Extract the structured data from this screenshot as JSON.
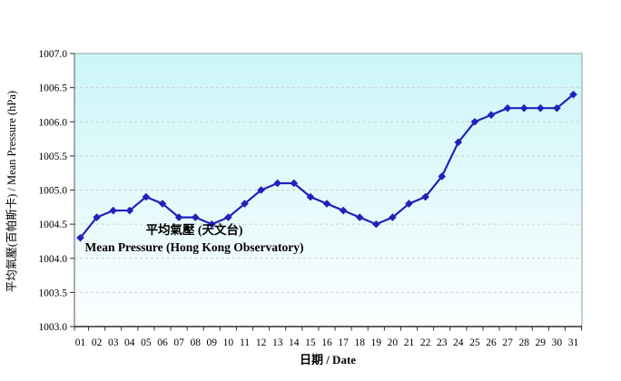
{
  "chart_data": {
    "type": "line",
    "title": "",
    "xlabel": "日期 / Date",
    "ylabel": "平均氣壓(百帕斯卡) / Mean Pressure (hPa)",
    "legend": {
      "line1": "平均氣壓 (天文台)",
      "line2": "Mean Pressure (Hong Kong Observatory)",
      "position": "inside-left-middle"
    },
    "categories": [
      "01",
      "02",
      "03",
      "04",
      "05",
      "06",
      "07",
      "08",
      "09",
      "10",
      "11",
      "12",
      "13",
      "14",
      "15",
      "16",
      "17",
      "18",
      "19",
      "20",
      "21",
      "22",
      "23",
      "24",
      "25",
      "26",
      "27",
      "28",
      "29",
      "30",
      "31"
    ],
    "series": [
      {
        "name": "Mean Pressure (Hong Kong Observatory)",
        "values": [
          1004.3,
          1004.6,
          1004.7,
          1004.7,
          1004.9,
          1004.8,
          1004.6,
          1004.6,
          1004.5,
          1004.6,
          1004.8,
          1005.0,
          1005.1,
          1005.1,
          1004.9,
          1004.8,
          1004.7,
          1004.6,
          1004.5,
          1004.6,
          1004.8,
          1004.9,
          1005.2,
          1005.7,
          1006.0,
          1006.1,
          1006.2,
          1006.2,
          1006.2,
          1006.2,
          1006.4
        ]
      }
    ],
    "ylim": [
      1003.0,
      1007.0
    ],
    "ytick_step": 0.5,
    "ytick_labels": [
      "1003.0",
      "1003.5",
      "1004.0",
      "1004.5",
      "1005.0",
      "1005.5",
      "1006.0",
      "1006.5",
      "1007.0"
    ],
    "grid": "horizontal-dashed",
    "marker": "diamond",
    "legend_text_color": "#8B1E1E",
    "colors": {
      "line": "#2121BD",
      "legend_text": "#8B1E1E",
      "plot_bg_top": "#CCF5F8",
      "plot_bg_bottom": "#FBFEFF",
      "grid": "#D2D0C2",
      "axis": "#2F2F2F",
      "border": "#8FA0A0",
      "tick_text": "#000000"
    }
  }
}
